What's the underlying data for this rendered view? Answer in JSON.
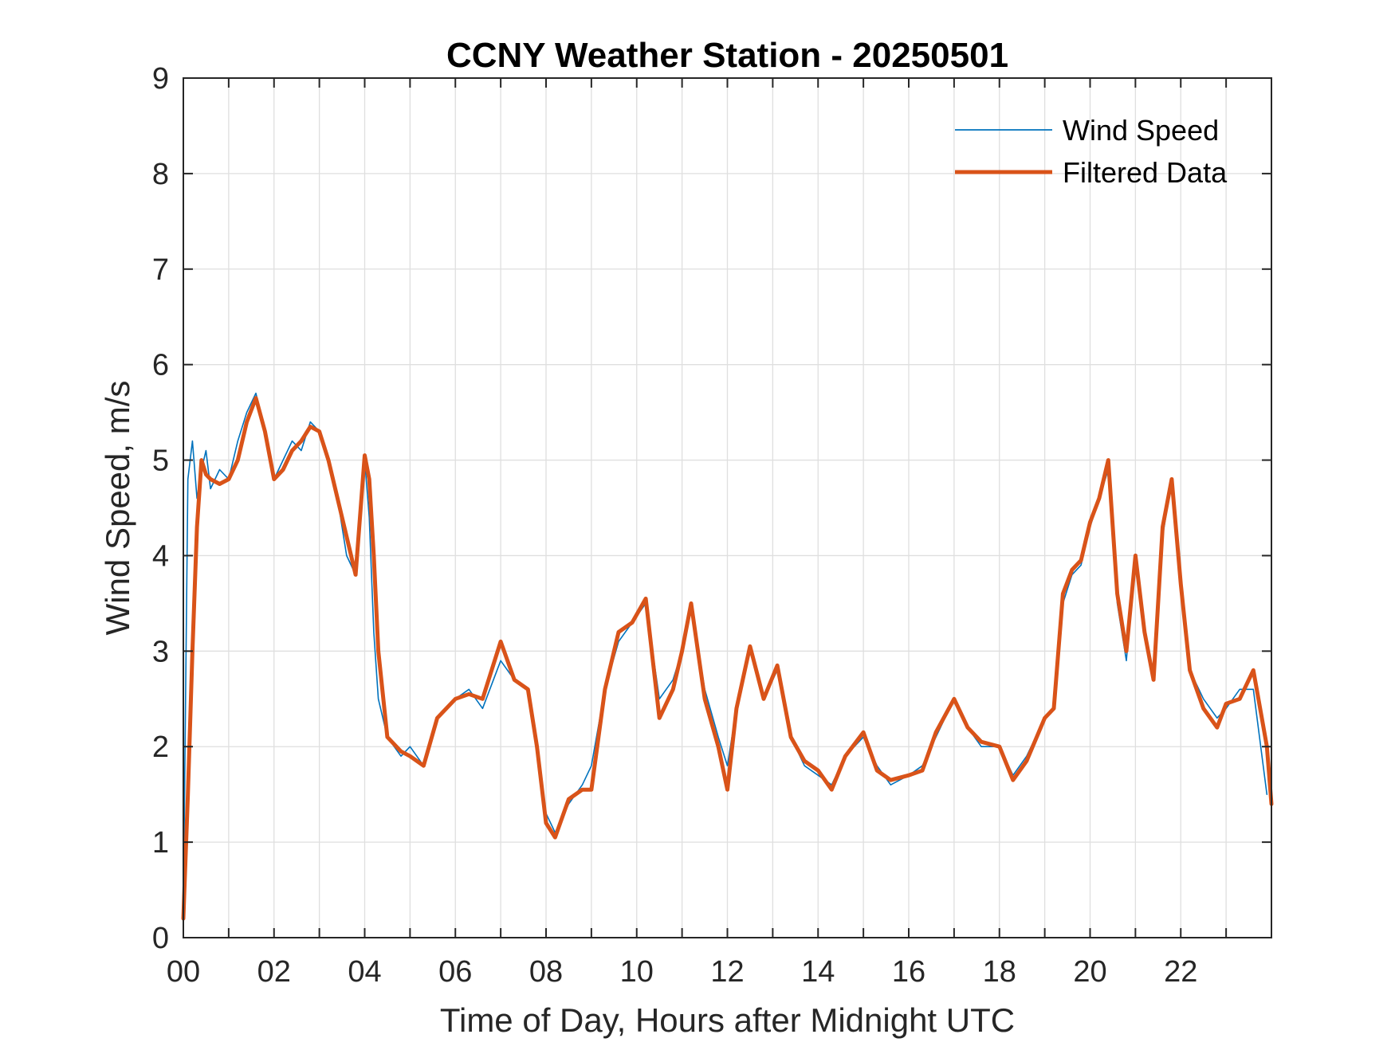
{
  "chart_data": {
    "type": "line",
    "title": "CCNY Weather Station - 20250501",
    "xlabel": "Time of Day, Hours after Midnight UTC",
    "ylabel": "Wind Speed, m/s",
    "xlim": [
      0,
      24
    ],
    "ylim": [
      0,
      9
    ],
    "x_ticks": [
      0,
      2,
      4,
      6,
      8,
      10,
      12,
      14,
      16,
      18,
      20,
      22
    ],
    "x_tick_labels": [
      "00",
      "02",
      "04",
      "06",
      "08",
      "10",
      "12",
      "14",
      "16",
      "18",
      "20",
      "22"
    ],
    "y_ticks": [
      0,
      1,
      2,
      3,
      4,
      5,
      6,
      7,
      8,
      9
    ],
    "y_tick_labels": [
      "0",
      "1",
      "2",
      "3",
      "4",
      "5",
      "6",
      "7",
      "8",
      "9"
    ],
    "grid": true,
    "legend_position": "top-right",
    "series": [
      {
        "name": "Wind Speed",
        "color": "#0072BD",
        "style": "thin",
        "x": [
          0.0,
          0.1,
          0.2,
          0.3,
          0.4,
          0.5,
          0.6,
          0.8,
          1.0,
          1.2,
          1.4,
          1.6,
          1.8,
          2.0,
          2.2,
          2.4,
          2.6,
          2.8,
          3.0,
          3.2,
          3.4,
          3.6,
          3.8,
          4.0,
          4.1,
          4.2,
          4.3,
          4.5,
          4.8,
          5.0,
          5.3,
          5.6,
          6.0,
          6.3,
          6.6,
          7.0,
          7.3,
          7.6,
          7.8,
          8.0,
          8.2,
          8.5,
          8.8,
          9.0,
          9.3,
          9.6,
          9.9,
          10.2,
          10.5,
          10.8,
          11.0,
          11.2,
          11.5,
          11.8,
          12.0,
          12.2,
          12.5,
          12.8,
          13.1,
          13.4,
          13.7,
          14.0,
          14.3,
          14.6,
          15.0,
          15.3,
          15.6,
          16.0,
          16.3,
          16.6,
          17.0,
          17.3,
          17.6,
          18.0,
          18.3,
          18.6,
          19.0,
          19.2,
          19.4,
          19.6,
          19.8,
          20.0,
          20.2,
          20.4,
          20.6,
          20.8,
          21.0,
          21.2,
          21.4,
          21.6,
          21.8,
          22.0,
          22.2,
          22.5,
          22.8,
          23.0,
          23.3,
          23.6,
          23.9
        ],
        "values": [
          0.3,
          4.8,
          5.2,
          4.6,
          4.9,
          5.1,
          4.7,
          4.9,
          4.8,
          5.2,
          5.5,
          5.7,
          5.3,
          4.8,
          5.0,
          5.2,
          5.1,
          5.4,
          5.3,
          5.0,
          4.6,
          4.0,
          3.8,
          5.0,
          4.4,
          3.2,
          2.5,
          2.1,
          1.9,
          2.0,
          1.8,
          2.3,
          2.5,
          2.6,
          2.4,
          2.9,
          2.7,
          2.6,
          2.0,
          1.3,
          1.1,
          1.4,
          1.6,
          1.8,
          2.6,
          3.1,
          3.3,
          3.5,
          2.5,
          2.7,
          3.0,
          3.5,
          2.6,
          2.1,
          1.8,
          2.4,
          3.0,
          2.5,
          2.8,
          2.1,
          1.8,
          1.7,
          1.6,
          1.9,
          2.1,
          1.8,
          1.6,
          1.7,
          1.8,
          2.1,
          2.5,
          2.2,
          2.0,
          2.0,
          1.7,
          1.9,
          2.3,
          2.4,
          3.5,
          3.8,
          3.9,
          4.3,
          4.6,
          4.9,
          3.5,
          2.9,
          4.0,
          3.2,
          2.7,
          4.2,
          4.8,
          3.7,
          2.8,
          2.5,
          2.3,
          2.4,
          2.6,
          2.6,
          1.5
        ]
      },
      {
        "name": "Filtered Data",
        "color": "#D95319",
        "style": "thick",
        "x": [
          0.0,
          0.1,
          0.2,
          0.3,
          0.4,
          0.5,
          0.6,
          0.8,
          1.0,
          1.2,
          1.4,
          1.6,
          1.8,
          2.0,
          2.2,
          2.4,
          2.6,
          2.8,
          3.0,
          3.2,
          3.4,
          3.6,
          3.8,
          4.0,
          4.1,
          4.2,
          4.3,
          4.5,
          4.8,
          5.0,
          5.3,
          5.6,
          6.0,
          6.3,
          6.6,
          7.0,
          7.3,
          7.6,
          7.8,
          8.0,
          8.2,
          8.5,
          8.8,
          9.0,
          9.3,
          9.6,
          9.9,
          10.2,
          10.5,
          10.8,
          11.0,
          11.2,
          11.5,
          11.8,
          12.0,
          12.2,
          12.5,
          12.8,
          13.1,
          13.4,
          13.7,
          14.0,
          14.3,
          14.6,
          15.0,
          15.3,
          15.6,
          16.0,
          16.3,
          16.6,
          17.0,
          17.3,
          17.6,
          18.0,
          18.3,
          18.6,
          19.0,
          19.2,
          19.4,
          19.6,
          19.8,
          20.0,
          20.2,
          20.4,
          20.6,
          20.8,
          21.0,
          21.2,
          21.4,
          21.6,
          21.8,
          22.0,
          22.2,
          22.5,
          22.8,
          23.0,
          23.3,
          23.6,
          23.9,
          24.0
        ],
        "values": [
          0.2,
          1.5,
          3.0,
          4.3,
          5.0,
          4.85,
          4.8,
          4.75,
          4.8,
          5.0,
          5.4,
          5.65,
          5.3,
          4.8,
          4.9,
          5.1,
          5.2,
          5.35,
          5.3,
          5.0,
          4.6,
          4.2,
          3.8,
          5.05,
          4.8,
          4.0,
          3.0,
          2.1,
          1.95,
          1.9,
          1.8,
          2.3,
          2.5,
          2.55,
          2.5,
          3.1,
          2.7,
          2.6,
          2.0,
          1.2,
          1.05,
          1.45,
          1.55,
          1.55,
          2.6,
          3.2,
          3.3,
          3.55,
          2.3,
          2.6,
          3.0,
          3.5,
          2.5,
          2.0,
          1.55,
          2.4,
          3.05,
          2.5,
          2.85,
          2.1,
          1.85,
          1.75,
          1.55,
          1.9,
          2.15,
          1.75,
          1.65,
          1.7,
          1.75,
          2.15,
          2.5,
          2.2,
          2.05,
          2.0,
          1.65,
          1.85,
          2.3,
          2.4,
          3.6,
          3.85,
          3.95,
          4.35,
          4.6,
          5.0,
          3.6,
          3.0,
          4.0,
          3.2,
          2.7,
          4.3,
          4.8,
          3.7,
          2.8,
          2.4,
          2.2,
          2.45,
          2.5,
          2.8,
          2.0,
          1.4
        ]
      }
    ]
  }
}
